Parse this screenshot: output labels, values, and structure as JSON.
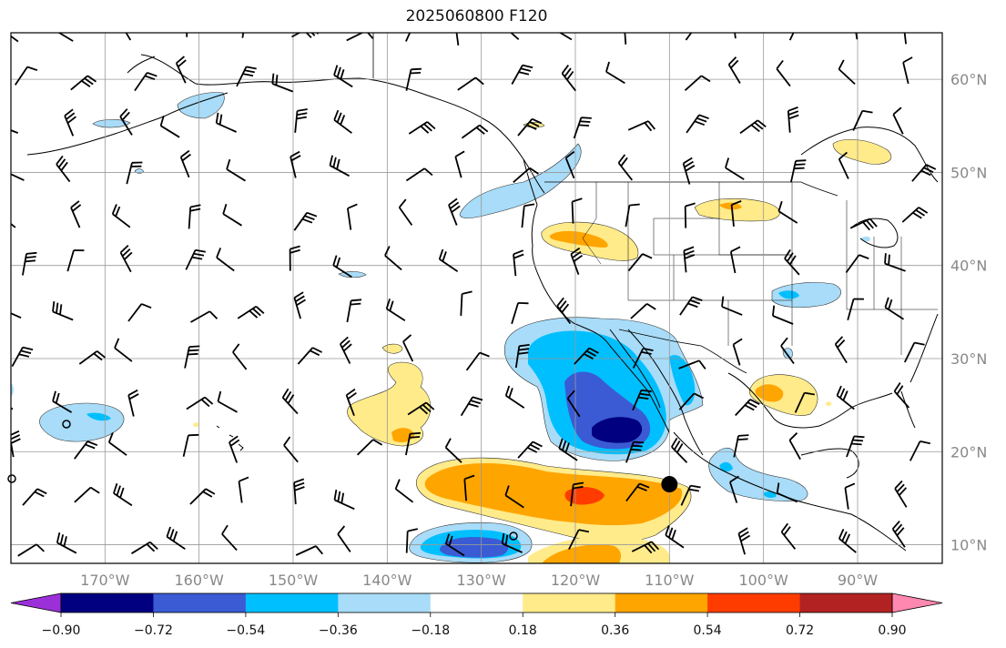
{
  "title": "2025060800 F120",
  "map": {
    "lon_range": [
      -180,
      -81
    ],
    "lat_range": [
      8,
      65
    ],
    "gridlines": true,
    "lon_ticks": [
      {
        "value": -170,
        "label": "170°W"
      },
      {
        "value": -160,
        "label": "160°W"
      },
      {
        "value": -150,
        "label": "150°W"
      },
      {
        "value": -140,
        "label": "140°W"
      },
      {
        "value": -130,
        "label": "130°W"
      },
      {
        "value": -120,
        "label": "120°W"
      },
      {
        "value": -110,
        "label": "110°W"
      },
      {
        "value": -100,
        "label": "100°W"
      },
      {
        "value": -90,
        "label": "90°W"
      }
    ],
    "lat_ticks": [
      {
        "value": 10,
        "label": "10°N"
      },
      {
        "value": 20,
        "label": "20°N"
      },
      {
        "value": 30,
        "label": "30°N"
      },
      {
        "value": 40,
        "label": "40°N"
      },
      {
        "value": 50,
        "label": "50°N"
      },
      {
        "value": 60,
        "label": "60°N"
      }
    ],
    "marker": {
      "lon": -110,
      "lat": 16.5,
      "color": "#000000"
    }
  },
  "colorbar": {
    "levels": [
      -0.9,
      -0.72,
      -0.54,
      -0.36,
      -0.18,
      0.18,
      0.36,
      0.54,
      0.72,
      0.9
    ],
    "tick_labels": [
      "−0.90",
      "−0.72",
      "−0.54",
      "−0.36",
      "−0.18",
      "0.18",
      "0.36",
      "0.54",
      "0.72",
      "0.90"
    ],
    "colors": [
      "#9b30d9",
      "#000080",
      "#3a5bd4",
      "#00bfff",
      "#a8dcf8",
      "#ffffff",
      "#ffeb8a",
      "#ffa500",
      "#ff3c00",
      "#b22222",
      "#ff88b0"
    ],
    "extend": "both"
  }
}
